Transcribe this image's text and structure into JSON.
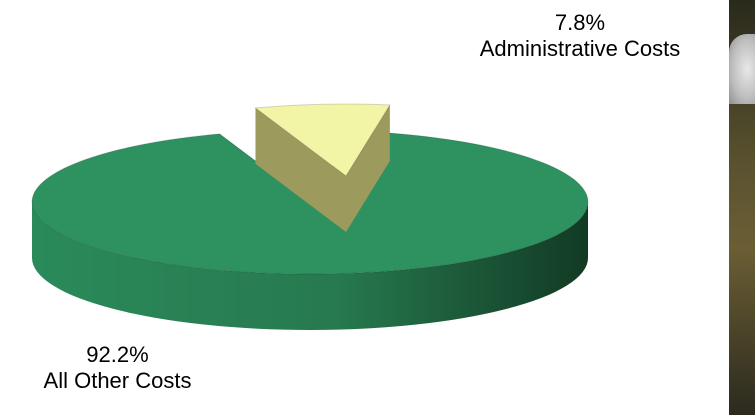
{
  "chart_data": {
    "type": "pie",
    "title": "",
    "slices": [
      {
        "label": "Administrative Costs",
        "value": 7.8,
        "value_text": "7.8%",
        "color": "#f2f4a6"
      },
      {
        "label": "All Other Costs",
        "value": 92.2,
        "value_text": "92.2%",
        "color": "#2e9160"
      }
    ],
    "style": "3d-exploded"
  }
}
